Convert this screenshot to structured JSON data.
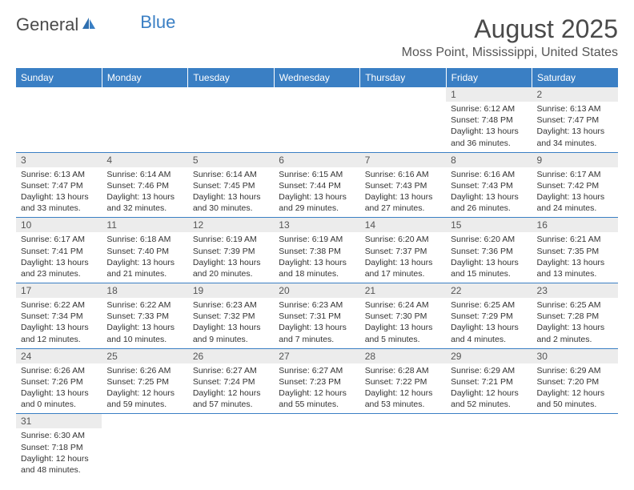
{
  "logo": {
    "general": "General",
    "blue": "Blue"
  },
  "title": "August 2025",
  "location": "Moss Point, Mississippi, United States",
  "colors": {
    "header_bg": "#3a7fc4",
    "header_fg": "#ffffff",
    "daynum_bg": "#ececec",
    "daynum_fg": "#555555",
    "cell_border": "#3a7fc4",
    "text": "#333333",
    "title_color": "#4a4a4a",
    "logo_blue": "#3a7fc4"
  },
  "weekdays": [
    "Sunday",
    "Monday",
    "Tuesday",
    "Wednesday",
    "Thursday",
    "Friday",
    "Saturday"
  ],
  "weeks": [
    [
      null,
      null,
      null,
      null,
      null,
      {
        "n": "1",
        "sr": "Sunrise: 6:12 AM",
        "ss": "Sunset: 7:48 PM",
        "d1": "Daylight: 13 hours",
        "d2": "and 36 minutes."
      },
      {
        "n": "2",
        "sr": "Sunrise: 6:13 AM",
        "ss": "Sunset: 7:47 PM",
        "d1": "Daylight: 13 hours",
        "d2": "and 34 minutes."
      }
    ],
    [
      {
        "n": "3",
        "sr": "Sunrise: 6:13 AM",
        "ss": "Sunset: 7:47 PM",
        "d1": "Daylight: 13 hours",
        "d2": "and 33 minutes."
      },
      {
        "n": "4",
        "sr": "Sunrise: 6:14 AM",
        "ss": "Sunset: 7:46 PM",
        "d1": "Daylight: 13 hours",
        "d2": "and 32 minutes."
      },
      {
        "n": "5",
        "sr": "Sunrise: 6:14 AM",
        "ss": "Sunset: 7:45 PM",
        "d1": "Daylight: 13 hours",
        "d2": "and 30 minutes."
      },
      {
        "n": "6",
        "sr": "Sunrise: 6:15 AM",
        "ss": "Sunset: 7:44 PM",
        "d1": "Daylight: 13 hours",
        "d2": "and 29 minutes."
      },
      {
        "n": "7",
        "sr": "Sunrise: 6:16 AM",
        "ss": "Sunset: 7:43 PM",
        "d1": "Daylight: 13 hours",
        "d2": "and 27 minutes."
      },
      {
        "n": "8",
        "sr": "Sunrise: 6:16 AM",
        "ss": "Sunset: 7:43 PM",
        "d1": "Daylight: 13 hours",
        "d2": "and 26 minutes."
      },
      {
        "n": "9",
        "sr": "Sunrise: 6:17 AM",
        "ss": "Sunset: 7:42 PM",
        "d1": "Daylight: 13 hours",
        "d2": "and 24 minutes."
      }
    ],
    [
      {
        "n": "10",
        "sr": "Sunrise: 6:17 AM",
        "ss": "Sunset: 7:41 PM",
        "d1": "Daylight: 13 hours",
        "d2": "and 23 minutes."
      },
      {
        "n": "11",
        "sr": "Sunrise: 6:18 AM",
        "ss": "Sunset: 7:40 PM",
        "d1": "Daylight: 13 hours",
        "d2": "and 21 minutes."
      },
      {
        "n": "12",
        "sr": "Sunrise: 6:19 AM",
        "ss": "Sunset: 7:39 PM",
        "d1": "Daylight: 13 hours",
        "d2": "and 20 minutes."
      },
      {
        "n": "13",
        "sr": "Sunrise: 6:19 AM",
        "ss": "Sunset: 7:38 PM",
        "d1": "Daylight: 13 hours",
        "d2": "and 18 minutes."
      },
      {
        "n": "14",
        "sr": "Sunrise: 6:20 AM",
        "ss": "Sunset: 7:37 PM",
        "d1": "Daylight: 13 hours",
        "d2": "and 17 minutes."
      },
      {
        "n": "15",
        "sr": "Sunrise: 6:20 AM",
        "ss": "Sunset: 7:36 PM",
        "d1": "Daylight: 13 hours",
        "d2": "and 15 minutes."
      },
      {
        "n": "16",
        "sr": "Sunrise: 6:21 AM",
        "ss": "Sunset: 7:35 PM",
        "d1": "Daylight: 13 hours",
        "d2": "and 13 minutes."
      }
    ],
    [
      {
        "n": "17",
        "sr": "Sunrise: 6:22 AM",
        "ss": "Sunset: 7:34 PM",
        "d1": "Daylight: 13 hours",
        "d2": "and 12 minutes."
      },
      {
        "n": "18",
        "sr": "Sunrise: 6:22 AM",
        "ss": "Sunset: 7:33 PM",
        "d1": "Daylight: 13 hours",
        "d2": "and 10 minutes."
      },
      {
        "n": "19",
        "sr": "Sunrise: 6:23 AM",
        "ss": "Sunset: 7:32 PM",
        "d1": "Daylight: 13 hours",
        "d2": "and 9 minutes."
      },
      {
        "n": "20",
        "sr": "Sunrise: 6:23 AM",
        "ss": "Sunset: 7:31 PM",
        "d1": "Daylight: 13 hours",
        "d2": "and 7 minutes."
      },
      {
        "n": "21",
        "sr": "Sunrise: 6:24 AM",
        "ss": "Sunset: 7:30 PM",
        "d1": "Daylight: 13 hours",
        "d2": "and 5 minutes."
      },
      {
        "n": "22",
        "sr": "Sunrise: 6:25 AM",
        "ss": "Sunset: 7:29 PM",
        "d1": "Daylight: 13 hours",
        "d2": "and 4 minutes."
      },
      {
        "n": "23",
        "sr": "Sunrise: 6:25 AM",
        "ss": "Sunset: 7:28 PM",
        "d1": "Daylight: 13 hours",
        "d2": "and 2 minutes."
      }
    ],
    [
      {
        "n": "24",
        "sr": "Sunrise: 6:26 AM",
        "ss": "Sunset: 7:26 PM",
        "d1": "Daylight: 13 hours",
        "d2": "and 0 minutes."
      },
      {
        "n": "25",
        "sr": "Sunrise: 6:26 AM",
        "ss": "Sunset: 7:25 PM",
        "d1": "Daylight: 12 hours",
        "d2": "and 59 minutes."
      },
      {
        "n": "26",
        "sr": "Sunrise: 6:27 AM",
        "ss": "Sunset: 7:24 PM",
        "d1": "Daylight: 12 hours",
        "d2": "and 57 minutes."
      },
      {
        "n": "27",
        "sr": "Sunrise: 6:27 AM",
        "ss": "Sunset: 7:23 PM",
        "d1": "Daylight: 12 hours",
        "d2": "and 55 minutes."
      },
      {
        "n": "28",
        "sr": "Sunrise: 6:28 AM",
        "ss": "Sunset: 7:22 PM",
        "d1": "Daylight: 12 hours",
        "d2": "and 53 minutes."
      },
      {
        "n": "29",
        "sr": "Sunrise: 6:29 AM",
        "ss": "Sunset: 7:21 PM",
        "d1": "Daylight: 12 hours",
        "d2": "and 52 minutes."
      },
      {
        "n": "30",
        "sr": "Sunrise: 6:29 AM",
        "ss": "Sunset: 7:20 PM",
        "d1": "Daylight: 12 hours",
        "d2": "and 50 minutes."
      }
    ],
    [
      {
        "n": "31",
        "sr": "Sunrise: 6:30 AM",
        "ss": "Sunset: 7:18 PM",
        "d1": "Daylight: 12 hours",
        "d2": "and 48 minutes."
      },
      null,
      null,
      null,
      null,
      null,
      null
    ]
  ]
}
